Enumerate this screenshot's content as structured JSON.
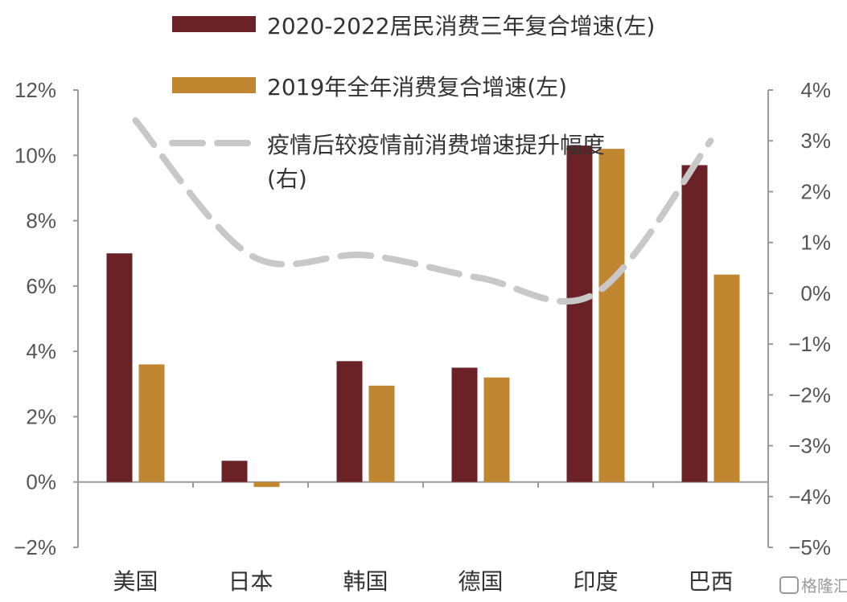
{
  "chart_data": {
    "type": "bar",
    "categories": [
      "美国",
      "日本",
      "韩国",
      "德国",
      "印度",
      "巴西"
    ],
    "series": [
      {
        "name": "2020-2022居民消费三年复合增速(左)",
        "type": "bar",
        "axis": "left",
        "color": "#6b2226",
        "values": [
          7.0,
          0.65,
          3.7,
          3.5,
          10.3,
          9.7
        ]
      },
      {
        "name": "2019年全年消费复合增速(左)",
        "type": "bar",
        "axis": "left",
        "color": "#c08630",
        "values": [
          3.6,
          -0.15,
          2.95,
          3.2,
          10.2,
          6.35
        ]
      },
      {
        "name": "疫情后较疫情前消费增速提升幅度",
        "name_suffix": "(右)",
        "type": "line",
        "axis": "right",
        "color": "#c8c8c8",
        "dashed": true,
        "values": [
          3.4,
          0.75,
          0.75,
          0.3,
          0.0,
          3.0
        ]
      }
    ],
    "y_left": {
      "min": -2,
      "max": 12,
      "step": 2,
      "tick_labels": [
        "−2%",
        "0%",
        "2%",
        "4%",
        "6%",
        "8%",
        "10%",
        "12%"
      ]
    },
    "y_right": {
      "min": -5,
      "max": 4,
      "step": 1,
      "tick_labels": [
        "−5%",
        "−4%",
        "−3%",
        "−2%",
        "−1%",
        "0%",
        "1%",
        "2%",
        "3%",
        "4%"
      ]
    },
    "legend_position": "top-center",
    "grid": false
  },
  "watermark": {
    "text": "格隆汇"
  }
}
